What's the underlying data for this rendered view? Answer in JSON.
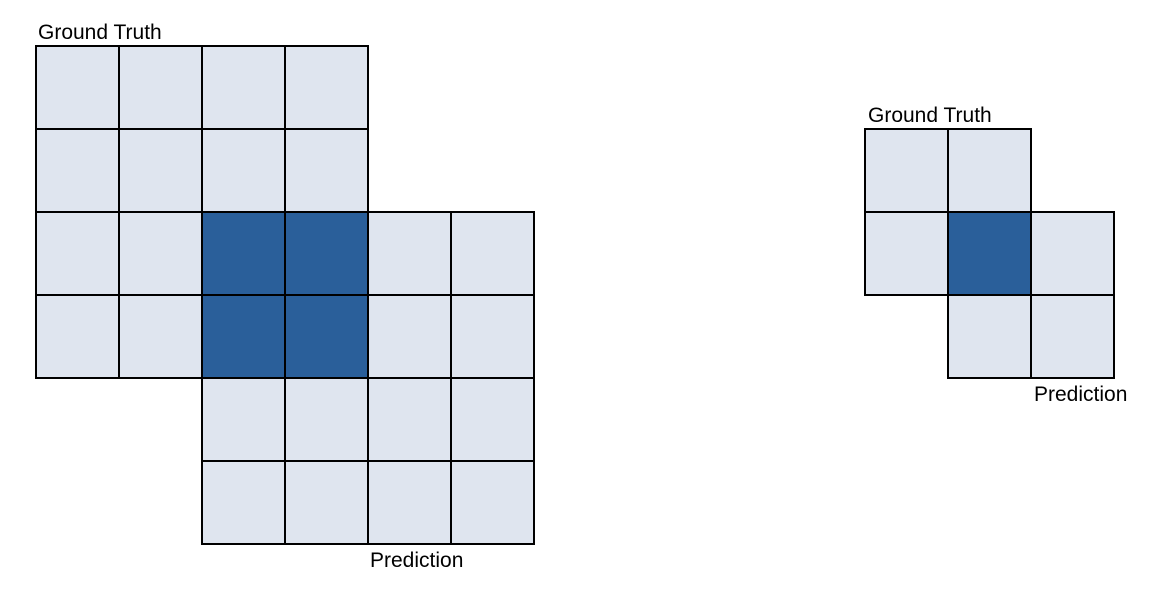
{
  "colors": {
    "background_cell": "#dfe5ef",
    "overlap_cell": "#2a5f9a",
    "grid_line": "#000000"
  },
  "large_figure": {
    "ground_truth_label": "Ground Truth",
    "prediction_label": "Prediction",
    "ground_truth_cells": {
      "rows": 4,
      "cols": 4
    },
    "prediction_cells": {
      "rows": 4,
      "cols": 4,
      "row_offset": 2,
      "col_offset": 2
    },
    "overlap_cells": {
      "rows": 2,
      "cols": 2
    }
  },
  "small_figure": {
    "ground_truth_label": "Ground Truth",
    "prediction_label": "Prediction",
    "ground_truth_cells": {
      "rows": 2,
      "cols": 2
    },
    "prediction_cells": {
      "rows": 2,
      "cols": 2,
      "row_offset": 1,
      "col_offset": 1
    },
    "overlap_cells": {
      "rows": 1,
      "cols": 1
    }
  }
}
